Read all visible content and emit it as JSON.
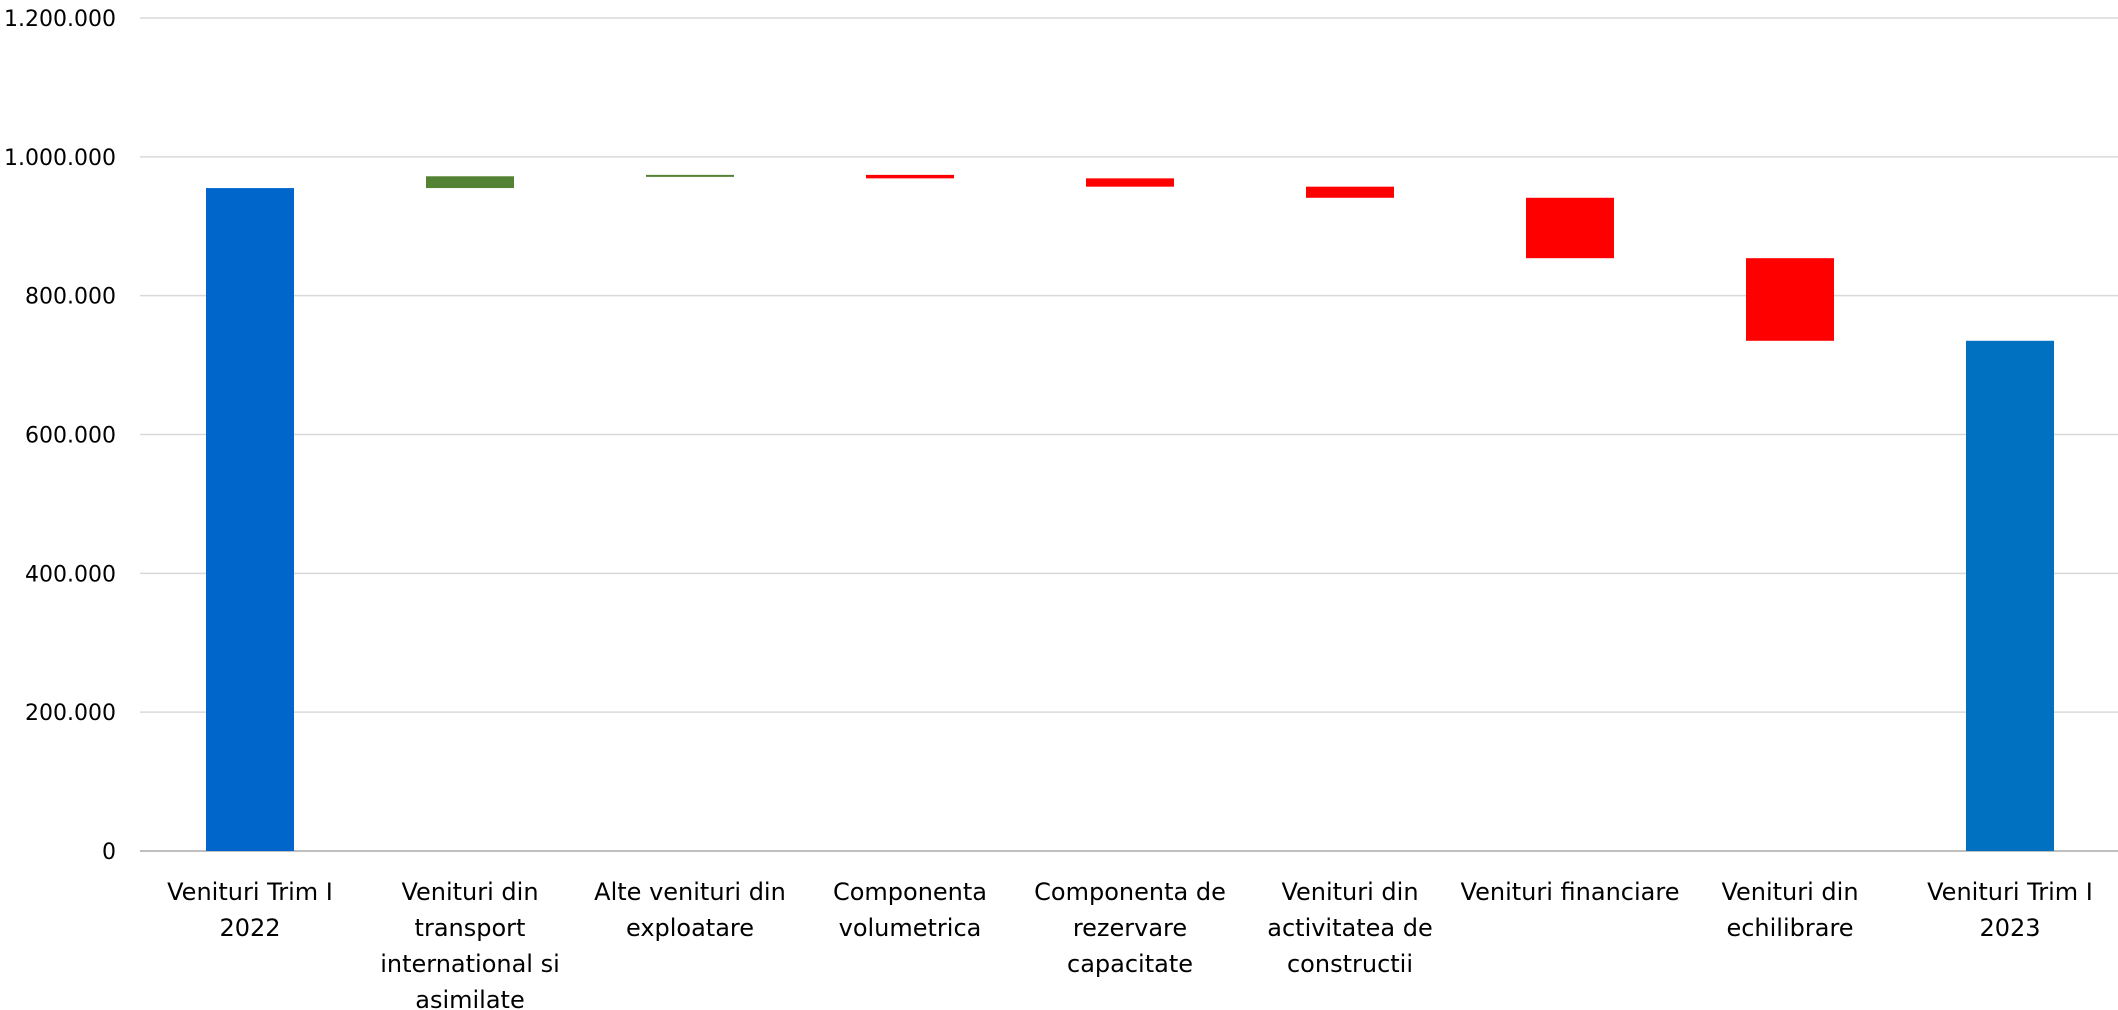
{
  "chart_data": {
    "type": "bar",
    "subtype": "waterfall",
    "title": "",
    "xlabel": "",
    "ylabel": "",
    "ylim": [
      0,
      1200000
    ],
    "yticks": [
      0,
      200000,
      400000,
      600000,
      800000,
      1000000,
      1200000
    ],
    "ytick_labels": [
      "0",
      "200.000",
      "400.000",
      "600.000",
      "800.000",
      "1.000.000",
      "1.200.000"
    ],
    "grid": true,
    "legend": "none",
    "categories": [
      [
        "Venituri Trim I",
        "2022"
      ],
      [
        "Venituri din",
        "transport",
        "international si",
        "asimilate"
      ],
      [
        "Alte venituri din",
        "exploatare"
      ],
      [
        "Componenta",
        "volumetrica"
      ],
      [
        "Componenta de",
        "rezervare",
        "capacitate"
      ],
      [
        "Venituri din",
        "activitatea de",
        "constructii"
      ],
      [
        "Venituri financiare"
      ],
      [
        "Venituri din",
        "echilibrare"
      ],
      [
        "Venituri Trim I",
        "2023"
      ]
    ],
    "bars": [
      {
        "kind": "total",
        "start": 0,
        "end": 955000,
        "color": "#0066cc"
      },
      {
        "kind": "increase",
        "start": 955000,
        "end": 972000,
        "color": "#548235"
      },
      {
        "kind": "increase",
        "start": 972000,
        "end": 974000,
        "color": "#548235"
      },
      {
        "kind": "decrease",
        "start": 974000,
        "end": 969000,
        "color": "#ff0000"
      },
      {
        "kind": "decrease",
        "start": 969000,
        "end": 957000,
        "color": "#ff0000"
      },
      {
        "kind": "decrease",
        "start": 957000,
        "end": 941000,
        "color": "#ff0000"
      },
      {
        "kind": "decrease",
        "start": 941000,
        "end": 854000,
        "color": "#ff0000"
      },
      {
        "kind": "decrease",
        "start": 854000,
        "end": 735000,
        "color": "#ff0000"
      },
      {
        "kind": "total",
        "start": 0,
        "end": 735000,
        "color": "#0070c0"
      }
    ]
  }
}
